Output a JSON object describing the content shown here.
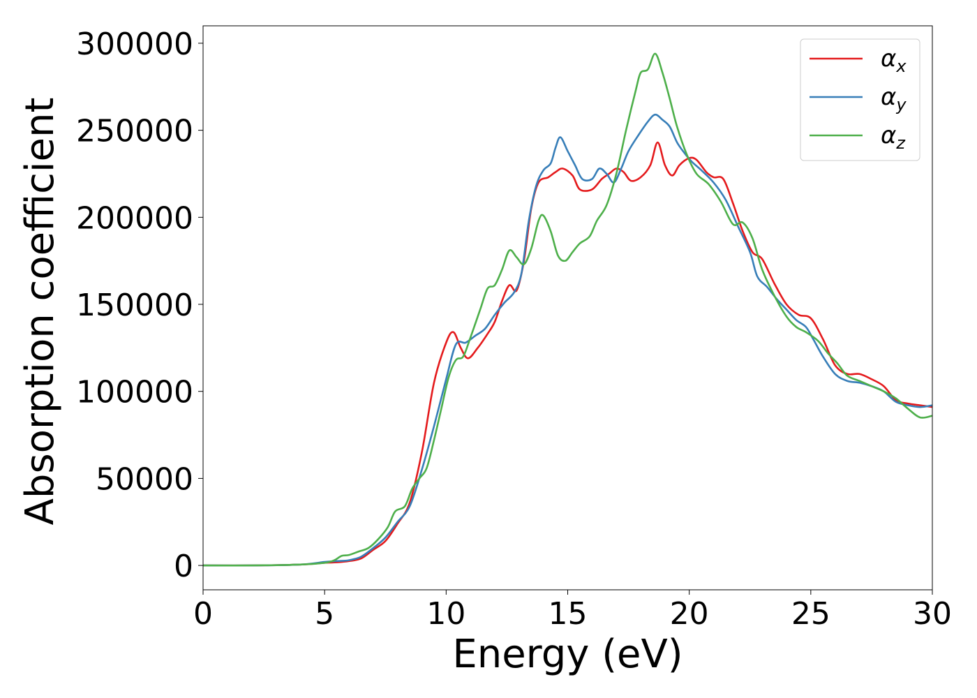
{
  "chart_data": {
    "type": "line",
    "title": "",
    "xlabel": "Energy (eV)",
    "ylabel": "Absorption coefficient",
    "xlim": [
      0,
      30
    ],
    "ylim": [
      -14000,
      310000
    ],
    "grid": false,
    "legend_position": "top-right",
    "x_ticks": [
      0,
      5,
      10,
      15,
      20,
      25,
      30
    ],
    "y_ticks": [
      0,
      50000,
      100000,
      150000,
      200000,
      250000,
      300000
    ],
    "x_tick_labels": [
      "0",
      "5",
      "10",
      "15",
      "20",
      "25",
      "30"
    ],
    "y_tick_labels": [
      "0",
      "50000",
      "100000",
      "150000",
      "200000",
      "250000",
      "300000"
    ],
    "series": [
      {
        "name": "α",
        "subscript": "x",
        "color": "#e41a1c",
        "points": [
          [
            0,
            0
          ],
          [
            2,
            0
          ],
          [
            4,
            500
          ],
          [
            5,
            1500
          ],
          [
            5.5,
            1800
          ],
          [
            6,
            2500
          ],
          [
            6.5,
            4000
          ],
          [
            7,
            9000
          ],
          [
            7.5,
            14000
          ],
          [
            8,
            24000
          ],
          [
            8.5,
            36000
          ],
          [
            9,
            65000
          ],
          [
            9.5,
            105000
          ],
          [
            10,
            128000
          ],
          [
            10.3,
            134000
          ],
          [
            10.6,
            125000
          ],
          [
            10.9,
            119000
          ],
          [
            11.3,
            125000
          ],
          [
            11.7,
            133000
          ],
          [
            12,
            140000
          ],
          [
            12.3,
            152000
          ],
          [
            12.6,
            161000
          ],
          [
            12.9,
            158000
          ],
          [
            13.2,
            175000
          ],
          [
            13.5,
            205000
          ],
          [
            13.8,
            220000
          ],
          [
            14.2,
            223000
          ],
          [
            14.5,
            226000
          ],
          [
            14.8,
            228000
          ],
          [
            15.2,
            224000
          ],
          [
            15.5,
            216000
          ],
          [
            16,
            216000
          ],
          [
            16.4,
            222000
          ],
          [
            16.7,
            225000
          ],
          [
            17,
            228000
          ],
          [
            17.3,
            226000
          ],
          [
            17.6,
            221000
          ],
          [
            18,
            223000
          ],
          [
            18.4,
            230000
          ],
          [
            18.7,
            243000
          ],
          [
            19,
            230000
          ],
          [
            19.3,
            224000
          ],
          [
            19.6,
            230000
          ],
          [
            20,
            234000
          ],
          [
            20.3,
            233000
          ],
          [
            20.7,
            226000
          ],
          [
            21,
            223000
          ],
          [
            21.4,
            222000
          ],
          [
            21.8,
            208000
          ],
          [
            22.2,
            192000
          ],
          [
            22.6,
            180000
          ],
          [
            23,
            176000
          ],
          [
            23.5,
            162000
          ],
          [
            24,
            150000
          ],
          [
            24.5,
            144000
          ],
          [
            25,
            142000
          ],
          [
            25.5,
            130000
          ],
          [
            26,
            115000
          ],
          [
            26.5,
            110000
          ],
          [
            27,
            110000
          ],
          [
            27.5,
            107000
          ],
          [
            28,
            103000
          ],
          [
            28.5,
            95000
          ],
          [
            29,
            93000
          ],
          [
            29.5,
            92000
          ],
          [
            30,
            91000
          ]
        ]
      },
      {
        "name": "α",
        "subscript": "y",
        "color": "#377eb8",
        "points": [
          [
            0,
            0
          ],
          [
            2,
            0
          ],
          [
            4,
            500
          ],
          [
            5,
            2000
          ],
          [
            5.5,
            2500
          ],
          [
            6,
            3000
          ],
          [
            6.5,
            5000
          ],
          [
            7,
            10000
          ],
          [
            7.5,
            16000
          ],
          [
            8,
            25000
          ],
          [
            8.5,
            34000
          ],
          [
            9,
            55000
          ],
          [
            9.5,
            80000
          ],
          [
            10,
            107000
          ],
          [
            10.4,
            127000
          ],
          [
            10.8,
            128000
          ],
          [
            11.2,
            132000
          ],
          [
            11.6,
            136000
          ],
          [
            12,
            144000
          ],
          [
            12.4,
            151000
          ],
          [
            12.8,
            157000
          ],
          [
            13.1,
            168000
          ],
          [
            13.4,
            198000
          ],
          [
            13.7,
            218000
          ],
          [
            14,
            227000
          ],
          [
            14.3,
            231000
          ],
          [
            14.5,
            240000
          ],
          [
            14.7,
            246000
          ],
          [
            15,
            238000
          ],
          [
            15.3,
            230000
          ],
          [
            15.6,
            222000
          ],
          [
            16,
            222000
          ],
          [
            16.3,
            228000
          ],
          [
            16.6,
            225000
          ],
          [
            16.9,
            220000
          ],
          [
            17.2,
            228000
          ],
          [
            17.5,
            238000
          ],
          [
            17.9,
            247000
          ],
          [
            18.3,
            255000
          ],
          [
            18.6,
            259000
          ],
          [
            18.9,
            256000
          ],
          [
            19.2,
            252000
          ],
          [
            19.5,
            243000
          ],
          [
            19.8,
            237000
          ],
          [
            20.1,
            232000
          ],
          [
            20.5,
            227000
          ],
          [
            21,
            220000
          ],
          [
            21.5,
            210000
          ],
          [
            22,
            195000
          ],
          [
            22.5,
            180000
          ],
          [
            22.8,
            166000
          ],
          [
            23.2,
            160000
          ],
          [
            23.6,
            153000
          ],
          [
            24,
            147000
          ],
          [
            24.4,
            141000
          ],
          [
            24.8,
            137000
          ],
          [
            25.1,
            130000
          ],
          [
            25.5,
            120000
          ],
          [
            26,
            110000
          ],
          [
            26.5,
            106000
          ],
          [
            27,
            105000
          ],
          [
            27.5,
            103000
          ],
          [
            28,
            100000
          ],
          [
            28.5,
            94000
          ],
          [
            29,
            92000
          ],
          [
            29.5,
            91000
          ],
          [
            30,
            92000
          ]
        ]
      },
      {
        "name": "α",
        "subscript": "z",
        "color": "#4daf4a",
        "points": [
          [
            0,
            0
          ],
          [
            2,
            0
          ],
          [
            4,
            500
          ],
          [
            5,
            1500
          ],
          [
            5.4,
            3000
          ],
          [
            5.7,
            5500
          ],
          [
            6,
            6000
          ],
          [
            6.4,
            8000
          ],
          [
            6.8,
            10000
          ],
          [
            7.2,
            15000
          ],
          [
            7.6,
            22000
          ],
          [
            7.9,
            31000
          ],
          [
            8.3,
            34000
          ],
          [
            8.6,
            44000
          ],
          [
            8.9,
            50000
          ],
          [
            9.2,
            56000
          ],
          [
            9.5,
            72000
          ],
          [
            9.8,
            90000
          ],
          [
            10.1,
            108000
          ],
          [
            10.4,
            118000
          ],
          [
            10.7,
            120000
          ],
          [
            11,
            131000
          ],
          [
            11.4,
            147000
          ],
          [
            11.7,
            159000
          ],
          [
            12,
            161000
          ],
          [
            12.3,
            170000
          ],
          [
            12.6,
            181000
          ],
          [
            12.9,
            177000
          ],
          [
            13.2,
            173000
          ],
          [
            13.5,
            182000
          ],
          [
            13.8,
            198000
          ],
          [
            14,
            201000
          ],
          [
            14.3,
            192000
          ],
          [
            14.6,
            178000
          ],
          [
            14.9,
            175000
          ],
          [
            15.2,
            180000
          ],
          [
            15.5,
            185000
          ],
          [
            15.9,
            189000
          ],
          [
            16.2,
            198000
          ],
          [
            16.6,
            207000
          ],
          [
            17,
            225000
          ],
          [
            17.4,
            250000
          ],
          [
            17.8,
            273000
          ],
          [
            18,
            283000
          ],
          [
            18.3,
            285000
          ],
          [
            18.6,
            294000
          ],
          [
            18.9,
            283000
          ],
          [
            19.2,
            268000
          ],
          [
            19.5,
            252000
          ],
          [
            19.9,
            236000
          ],
          [
            20.3,
            225000
          ],
          [
            20.8,
            219000
          ],
          [
            21.3,
            209000
          ],
          [
            21.8,
            196000
          ],
          [
            22.2,
            197000
          ],
          [
            22.6,
            188000
          ],
          [
            23,
            170000
          ],
          [
            23.5,
            155000
          ],
          [
            24,
            143000
          ],
          [
            24.4,
            137000
          ],
          [
            24.8,
            134000
          ],
          [
            25.3,
            129000
          ],
          [
            25.7,
            122000
          ],
          [
            26.1,
            116000
          ],
          [
            26.5,
            109000
          ],
          [
            27,
            106000
          ],
          [
            27.5,
            103000
          ],
          [
            28,
            100000
          ],
          [
            28.5,
            96000
          ],
          [
            29,
            90000
          ],
          [
            29.5,
            85000
          ],
          [
            30,
            86000
          ]
        ]
      }
    ]
  }
}
